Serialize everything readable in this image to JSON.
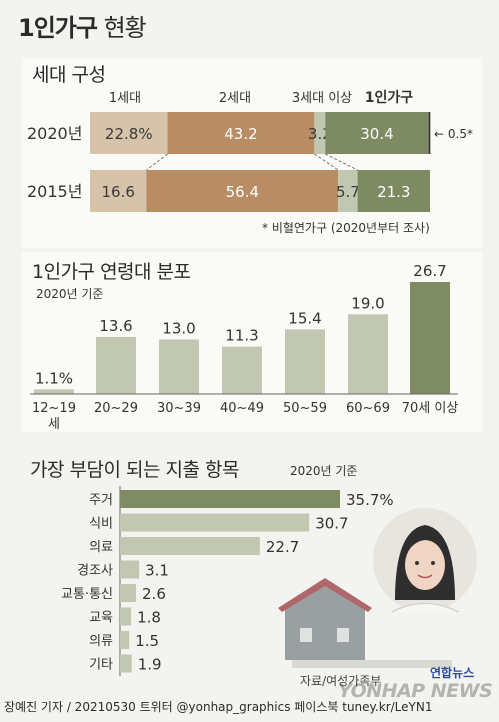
{
  "title_bold": "1인가구",
  "title_rest": "현황",
  "footer": "장예진 기자 / 20210530 트위터 @yonhap_graphics  페이스북 tuney.kr/LeYN1",
  "source": "자료/여성가족부",
  "watermark": "YONHAP NEWS",
  "logo_text": "연합뉴스",
  "colors": {
    "light": "#d7c3a9",
    "brown": "#b98d64",
    "pale": "#c1c8b2",
    "dark": "#7d8a62",
    "bar": "#c2c7b1",
    "bar_dark": "#7f8b62"
  },
  "chart_data": [
    {
      "type": "bar",
      "stacked": true,
      "orientation": "horizontal",
      "title": "세대 구성",
      "legend": [
        "1세대",
        "2세대",
        "3세대 이상",
        "1인가구"
      ],
      "categories": [
        "2020년",
        "2015년"
      ],
      "series": [
        {
          "name": "1세대",
          "values": [
            22.8,
            16.6
          ],
          "labels": [
            "22.8%",
            "16.6"
          ]
        },
        {
          "name": "2세대",
          "values": [
            43.2,
            56.4
          ],
          "labels": [
            "43.2",
            "56.4"
          ]
        },
        {
          "name": "3세대 이상",
          "values": [
            3.2,
            5.7
          ],
          "labels": [
            "3.2",
            "5.7"
          ]
        },
        {
          "name": "1인가구",
          "values": [
            30.4,
            21.3
          ],
          "labels": [
            "30.4",
            "21.3"
          ]
        },
        {
          "name": "비혈연가구",
          "values": [
            0.5,
            0
          ],
          "labels": [
            "← 0.5*",
            ""
          ]
        }
      ],
      "note": "* 비혈연가구 (2020년부터 조사)"
    },
    {
      "type": "bar",
      "title": "1인가구 연령대 분포",
      "subtitle": "2020년 기준",
      "categories": [
        "12~19세",
        "20~29",
        "30~39",
        "40~49",
        "50~59",
        "60~69",
        "70세 이상"
      ],
      "values": [
        1.1,
        13.6,
        13.0,
        11.3,
        15.4,
        19.0,
        26.7
      ],
      "labels": [
        "1.1%",
        "13.6",
        "13.0",
        "11.3",
        "15.4",
        "19.0",
        "26.7"
      ],
      "ylim": [
        0,
        26.7
      ]
    },
    {
      "type": "bar",
      "orientation": "horizontal",
      "title": "가장 부담이 되는 지출 항목",
      "subtitle": "2020년 기준",
      "categories": [
        "주거",
        "식비",
        "의료",
        "경조사",
        "교통·통신",
        "교육",
        "의류",
        "기타"
      ],
      "values": [
        35.7,
        30.7,
        22.7,
        3.1,
        2.6,
        1.8,
        1.5,
        1.9
      ],
      "labels": [
        "35.7%",
        "30.7",
        "22.7",
        "3.1",
        "2.6",
        "1.8",
        "1.5",
        "1.9"
      ]
    }
  ]
}
